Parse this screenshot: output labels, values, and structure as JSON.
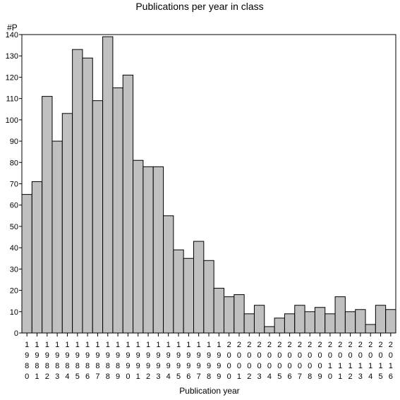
{
  "chart_data": {
    "type": "bar",
    "title": "Publications per year in class",
    "ylabel": "#P",
    "xlabel": "Publication year",
    "ylim": [
      0,
      140
    ],
    "ytick_step": 10,
    "grid": false,
    "legend": "none",
    "bar_color": "#c0c0c0",
    "categories": [
      "1980",
      "1981",
      "1982",
      "1983",
      "1984",
      "1985",
      "1986",
      "1987",
      "1988",
      "1989",
      "1990",
      "1991",
      "1992",
      "1993",
      "1994",
      "1995",
      "1996",
      "1997",
      "1998",
      "1999",
      "2000",
      "2001",
      "2002",
      "2003",
      "2004",
      "2005",
      "2006",
      "2007",
      "2008",
      "2009",
      "2010",
      "2011",
      "2012",
      "2013",
      "2014",
      "2015",
      "2016"
    ],
    "values": [
      65,
      71,
      111,
      90,
      103,
      133,
      129,
      109,
      139,
      115,
      121,
      81,
      78,
      78,
      55,
      39,
      35,
      43,
      34,
      21,
      17,
      18,
      9,
      13,
      3,
      7,
      9,
      13,
      10,
      12,
      9,
      17,
      10,
      11,
      4,
      13,
      11
    ]
  }
}
